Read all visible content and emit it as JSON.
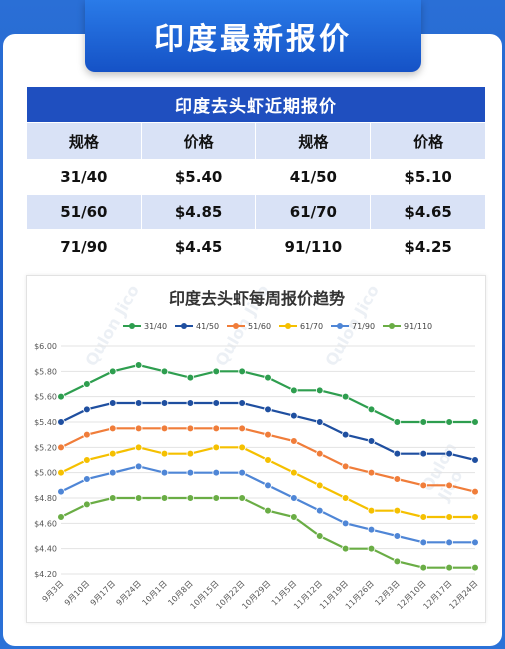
{
  "banner": {
    "title": "印度最新报价"
  },
  "price_table": {
    "caption": "印度去头虾近期报价",
    "headers": [
      "规格",
      "价格",
      "规格",
      "价格"
    ],
    "rows": [
      [
        "31/40",
        "$5.40",
        "41/50",
        "$5.10"
      ],
      [
        "51/60",
        "$4.85",
        "61/70",
        "$4.65"
      ],
      [
        "71/90",
        "$4.45",
        "91/110",
        "$4.25"
      ]
    ]
  },
  "watermark": {
    "text": "Qulon Jico"
  },
  "chart_data": {
    "type": "line",
    "title": "印度去头虾每周报价趋势",
    "xlabel": "",
    "ylabel": "",
    "categories": [
      "9月3日",
      "9月10日",
      "9月17日",
      "9月24日",
      "10月1日",
      "10月8日",
      "10月15日",
      "10月22日",
      "10月29日",
      "11月5日",
      "11月12日",
      "11月19日",
      "11月26日",
      "12月3日",
      "12月10日",
      "12月17日",
      "12月24日"
    ],
    "ylim": [
      4.2,
      6.0
    ],
    "yticks": [
      "$6.00",
      "$5.80",
      "$5.60",
      "$5.40",
      "$5.20",
      "$5.00",
      "$4.80",
      "$4.60",
      "$4.40",
      "$4.20"
    ],
    "ytick_values": [
      6.0,
      5.8,
      5.6,
      5.4,
      5.2,
      5.0,
      4.8,
      4.6,
      4.4,
      4.2
    ],
    "grid": true,
    "legend_position": "top",
    "series": [
      {
        "name": "31/40",
        "color": "#2e9e4f",
        "values": [
          5.6,
          5.7,
          5.8,
          5.85,
          5.8,
          5.75,
          5.8,
          5.8,
          5.75,
          5.65,
          5.65,
          5.6,
          5.5,
          5.4,
          5.4,
          5.4,
          5.4
        ]
      },
      {
        "name": "41/50",
        "color": "#1f4fa0",
        "values": [
          5.4,
          5.5,
          5.55,
          5.55,
          5.55,
          5.55,
          5.55,
          5.55,
          5.5,
          5.45,
          5.4,
          5.3,
          5.25,
          5.15,
          5.15,
          5.15,
          5.1
        ]
      },
      {
        "name": "51/60",
        "color": "#f07d3a",
        "values": [
          5.2,
          5.3,
          5.35,
          5.35,
          5.35,
          5.35,
          5.35,
          5.35,
          5.3,
          5.25,
          5.15,
          5.05,
          5.0,
          4.95,
          4.9,
          4.9,
          4.85
        ]
      },
      {
        "name": "61/70",
        "color": "#f5c000",
        "values": [
          5.0,
          5.1,
          5.15,
          5.2,
          5.15,
          5.15,
          5.2,
          5.2,
          5.1,
          5.0,
          4.9,
          4.8,
          4.7,
          4.7,
          4.65,
          4.65,
          4.65
        ]
      },
      {
        "name": "71/90",
        "color": "#4f86d6",
        "values": [
          4.85,
          4.95,
          5.0,
          5.05,
          5.0,
          5.0,
          5.0,
          5.0,
          4.9,
          4.8,
          4.7,
          4.6,
          4.55,
          4.5,
          4.45,
          4.45,
          4.45
        ]
      },
      {
        "name": "91/110",
        "color": "#6aad45",
        "values": [
          4.65,
          4.75,
          4.8,
          4.8,
          4.8,
          4.8,
          4.8,
          4.8,
          4.7,
          4.65,
          4.5,
          4.4,
          4.4,
          4.3,
          4.25,
          4.25,
          4.25
        ]
      }
    ]
  }
}
